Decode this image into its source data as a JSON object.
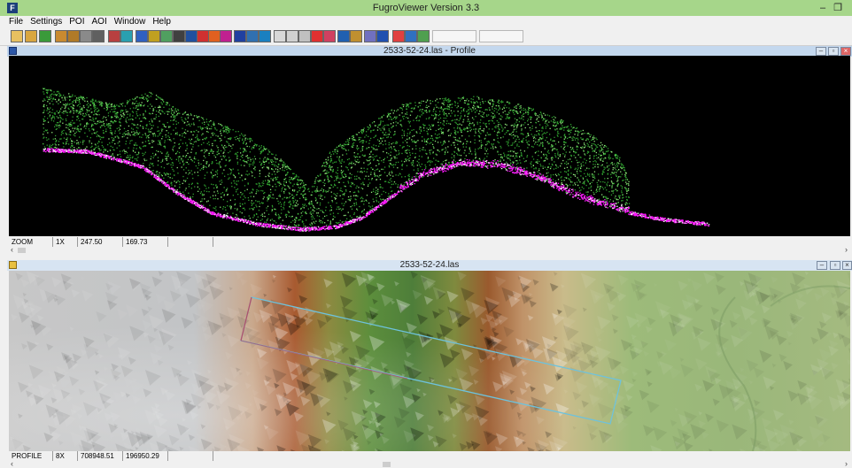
{
  "app": {
    "icon_glyph": "F",
    "title": "FugroViewer  Version 3.3",
    "min_glyph": "–",
    "max_glyph": "❐"
  },
  "menu": [
    "File",
    "Settings",
    "POI",
    "AOI",
    "Window",
    "Help"
  ],
  "profile_window": {
    "title": "2533-52-24.las - Profile",
    "status": {
      "mode": "ZOOM",
      "zoom": "1X",
      "x": "247.50",
      "y": "169.73"
    }
  },
  "map_window": {
    "title": "2533-52-24.las",
    "status": {
      "mode": "PROFILE",
      "zoom": "8X",
      "x": "708948.51",
      "y": "196950.29"
    }
  },
  "window_controls": {
    "minimize": "–",
    "restore": "▫",
    "close": "×"
  },
  "scroll": {
    "left": "‹",
    "right": "›"
  },
  "toolbar_icons": [
    "open-file-icon",
    "open-folder-icon",
    "arrow-icon",
    "print-icon",
    "print-preview-icon",
    "export-icon",
    "grid-icon",
    "texture-icon",
    "elevation-icon",
    "layers-icon",
    "color-bar-icon",
    "palette-icon",
    "line-icon",
    "gradient-icon",
    "rgb-icon",
    "intensity-icon",
    "bars-icon",
    "points-icon",
    "point-grid-icon",
    "surface-icon",
    "hand-icon",
    "lasso-icon",
    "profile-icon",
    "poi-icon",
    "target-icon",
    "info-icon",
    "measure-icon",
    "ruler-icon",
    "3d-icon",
    "stop-icon",
    "settings-icon",
    "filter-icon"
  ],
  "colors": {
    "title_bar": "#a6d68a",
    "child_bar": "#c4d8ee",
    "vegetation": "#2fbd2f",
    "ground": "#ff00ff",
    "profile_line": "#6ec2dc"
  }
}
